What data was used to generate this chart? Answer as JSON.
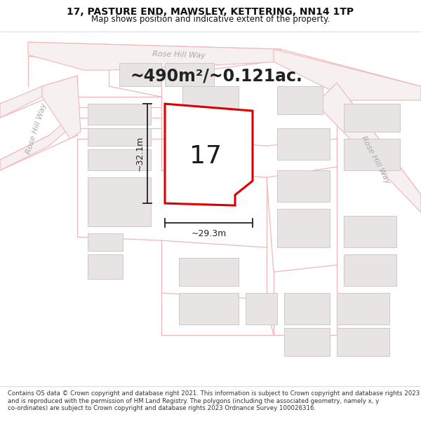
{
  "title_line1": "17, PASTURE END, MAWSLEY, KETTERING, NN14 1TP",
  "title_line2": "Map shows position and indicative extent of the property.",
  "area_text": "~490m²/~0.121ac.",
  "number_label": "17",
  "dim_width": "~29.3m",
  "dim_height": "~32.1m",
  "footnote": "Contains OS data © Crown copyright and database right 2021. This information is subject to Crown copyright and database rights 2023 and is reproduced with the permission of HM Land Registry. The polygons (including the associated geometry, namely x, y co-ordinates) are subject to Crown copyright and database rights 2023 Ordnance Survey 100026316.",
  "map_bg": "#f9f8f8",
  "plot_fill": "#ffffff",
  "plot_border": "#dd0000",
  "road_line_color": "#f0b8b8",
  "road_fill_color": "#f7f0f0",
  "road_label_color": "#aaaaaa",
  "building_fill": "#e8e4e4",
  "building_edge": "#d0c8c8",
  "dim_color": "#222222",
  "area_color": "#222222",
  "title_color": "#111111",
  "footnote_color": "#333333",
  "title_fontsize": 10,
  "subtitle_fontsize": 8.5,
  "area_fontsize": 17,
  "number_fontsize": 26,
  "dim_fontsize": 9,
  "road_label_fontsize": 8,
  "footnote_fontsize": 6.2
}
